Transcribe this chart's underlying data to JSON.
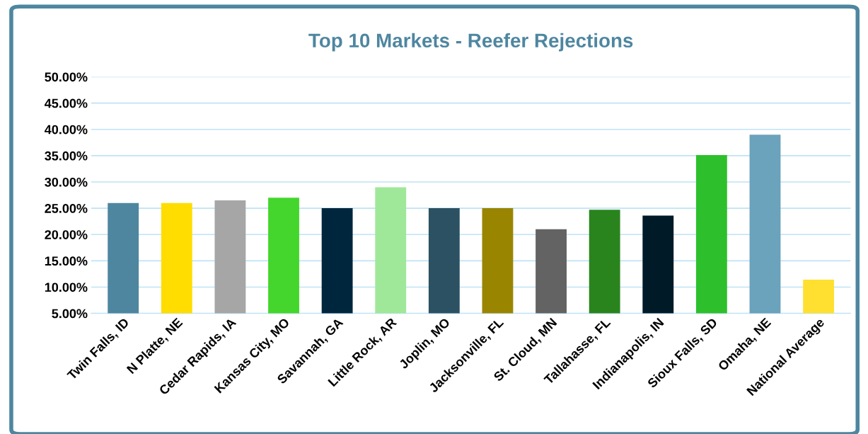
{
  "chart_data": {
    "type": "bar",
    "title": "Top 10 Markets - Reefer Rejections",
    "categories": [
      "Twin Falls, ID",
      "N Platte, NE",
      "Cedar Rapids, IA",
      "Kansas City, MO",
      "Savannah, GA",
      "Little Rock, AR",
      "Joplin, MO",
      "Jacksonville, FL",
      "St. Cloud, MN",
      "Tallahasse, FL",
      "Indianapolis, IN",
      "Sioux Falls, SD",
      "Omaha, NE",
      "National Average"
    ],
    "values": [
      26,
      26,
      26.5,
      27,
      25,
      29,
      25,
      25,
      21,
      24.7,
      23.6,
      35.1,
      39,
      11.4
    ],
    "colors": [
      "#4e86a0",
      "#ffdd00",
      "#a6a6a6",
      "#44d62c",
      "#00263e",
      "#a0e899",
      "#2c5163",
      "#998500",
      "#636363",
      "#2a841e",
      "#001a28",
      "#2ec02c",
      "#6ba2bc",
      "#ffe030"
    ],
    "ylim": [
      5,
      50
    ],
    "yticks": [
      {
        "value": 5,
        "label": "5.00%"
      },
      {
        "value": 10,
        "label": "10.00%"
      },
      {
        "value": 15,
        "label": "15.00%"
      },
      {
        "value": 20,
        "label": "20.00%"
      },
      {
        "value": 25,
        "label": "25.00%"
      },
      {
        "value": 30,
        "label": "30.00%"
      },
      {
        "value": 35,
        "label": "35.00%"
      },
      {
        "value": 40,
        "label": "40.00%"
      },
      {
        "value": 45,
        "label": "45.00%"
      },
      {
        "value": 50,
        "label": "50.00%"
      }
    ],
    "grid": "y",
    "legend": false
  }
}
